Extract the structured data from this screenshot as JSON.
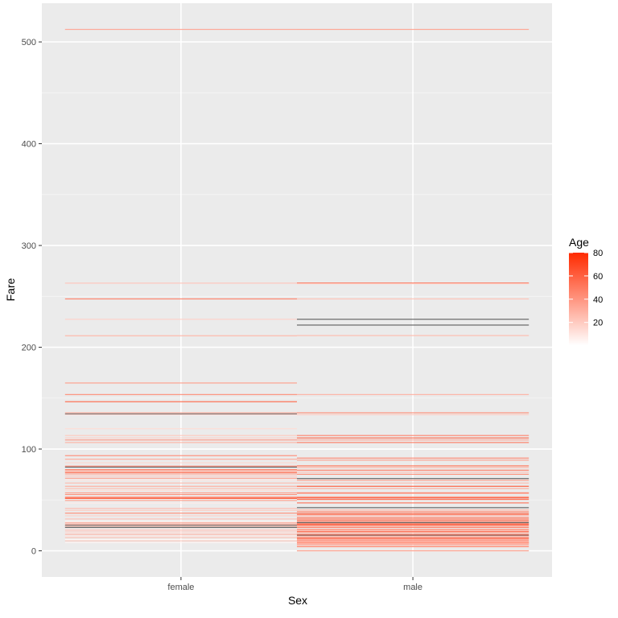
{
  "chart_data": {
    "type": "tile",
    "title": "",
    "xlabel": "Sex",
    "ylabel": "Fare",
    "categories": [
      "female",
      "male"
    ],
    "yticks": [
      0,
      100,
      200,
      300,
      400,
      500
    ],
    "ylim": [
      -25,
      537
    ],
    "grid": true,
    "legend": {
      "title": "Age",
      "position": "right",
      "ticks": [
        20,
        40,
        60,
        80
      ],
      "range": [
        0.42,
        80
      ],
      "low_color": "#ffffff",
      "high_color": "#ff2a00",
      "na_color": "#595959"
    },
    "series": [
      {
        "name": "female",
        "tiles": [
          {
            "fare": 512.3,
            "age": 35
          },
          {
            "fare": 263.0,
            "age": 23
          },
          {
            "fare": 247.5,
            "age": 50
          },
          {
            "fare": 227.5,
            "age": 18
          },
          {
            "fare": 211.3,
            "age": 29
          },
          {
            "fare": 164.9,
            "age": 38
          },
          {
            "fare": 153.5,
            "age": 45
          },
          {
            "fare": 146.5,
            "age": 60
          },
          {
            "fare": 135.6,
            "age": 33
          },
          {
            "fare": 134.5,
            "age": null
          },
          {
            "fare": 133.7,
            "age": 15
          },
          {
            "fare": 120.0,
            "age": 14
          },
          {
            "fare": 113.3,
            "age": 21
          },
          {
            "fare": 110.9,
            "age": 19
          },
          {
            "fare": 108.9,
            "age": 40
          },
          {
            "fare": 106.4,
            "age": 30
          },
          {
            "fare": 93.5,
            "age": 44
          },
          {
            "fare": 90.0,
            "age": 33
          },
          {
            "fare": 86.5,
            "age": 16
          },
          {
            "fare": 83.2,
            "age": 48
          },
          {
            "fare": 82.2,
            "age": null
          },
          {
            "fare": 79.7,
            "age": 56
          },
          {
            "fare": 78.3,
            "age": 42
          },
          {
            "fare": 77.9,
            "age": 24
          },
          {
            "fare": 76.7,
            "age": 58
          },
          {
            "fare": 75.3,
            "age": 30
          },
          {
            "fare": 73.5,
            "age": 22
          },
          {
            "fare": 71.3,
            "age": 38
          },
          {
            "fare": 69.5,
            "age": 10
          },
          {
            "fare": 66.6,
            "age": 27
          },
          {
            "fare": 63.4,
            "age": 32
          },
          {
            "fare": 61.2,
            "age": 26
          },
          {
            "fare": 59.4,
            "age": 14
          },
          {
            "fare": 57.0,
            "age": 36
          },
          {
            "fare": 55.4,
            "age": 45
          },
          {
            "fare": 53.1,
            "age": 35
          },
          {
            "fare": 52.0,
            "age": 58
          },
          {
            "fare": 51.5,
            "age": 63
          },
          {
            "fare": 49.5,
            "age": 39
          },
          {
            "fare": 46.9,
            "age": 8
          },
          {
            "fare": 41.6,
            "age": 28
          },
          {
            "fare": 39.7,
            "age": 20
          },
          {
            "fare": 37.0,
            "age": 45
          },
          {
            "fare": 34.4,
            "age": 18
          },
          {
            "fare": 31.3,
            "age": 24
          },
          {
            "fare": 29.1,
            "age": 4
          },
          {
            "fare": 27.7,
            "age": 30
          },
          {
            "fare": 26.3,
            "age": 38
          },
          {
            "fare": 25.0,
            "age": null
          },
          {
            "fare": 24.2,
            "age": 27
          },
          {
            "fare": 23.0,
            "age": null
          },
          {
            "fare": 21.0,
            "age": 19
          },
          {
            "fare": 19.5,
            "age": 22
          },
          {
            "fare": 17.8,
            "age": 15
          },
          {
            "fare": 16.1,
            "age": 29
          },
          {
            "fare": 14.5,
            "age": 9
          },
          {
            "fare": 13.0,
            "age": 24
          },
          {
            "fare": 11.1,
            "age": 3
          },
          {
            "fare": 9.8,
            "age": 21
          },
          {
            "fare": 8.0,
            "age": 5
          }
        ]
      },
      {
        "name": "male",
        "tiles": [
          {
            "fare": 512.3,
            "age": 36
          },
          {
            "fare": 263.0,
            "age": 64
          },
          {
            "fare": 262.4,
            "age": 19
          },
          {
            "fare": 247.5,
            "age": 24
          },
          {
            "fare": 227.5,
            "age": null
          },
          {
            "fare": 221.8,
            "age": null
          },
          {
            "fare": 211.5,
            "age": 27
          },
          {
            "fare": 153.5,
            "age": 31
          },
          {
            "fare": 135.6,
            "age": 45
          },
          {
            "fare": 133.7,
            "age": 20
          },
          {
            "fare": 113.3,
            "age": 48
          },
          {
            "fare": 110.9,
            "age": 61
          },
          {
            "fare": 108.9,
            "age": 36
          },
          {
            "fare": 106.4,
            "age": 52
          },
          {
            "fare": 91.1,
            "age": 47
          },
          {
            "fare": 89.1,
            "age": 38
          },
          {
            "fare": 83.5,
            "age": 54
          },
          {
            "fare": 81.9,
            "age": 30
          },
          {
            "fare": 79.2,
            "age": 50
          },
          {
            "fare": 77.3,
            "age": 25
          },
          {
            "fare": 75.2,
            "age": 45
          },
          {
            "fare": 71.0,
            "age": null
          },
          {
            "fare": 69.3,
            "age": 39
          },
          {
            "fare": 66.6,
            "age": 27
          },
          {
            "fare": 63.4,
            "age": 64
          },
          {
            "fare": 61.2,
            "age": 33
          },
          {
            "fare": 57.0,
            "age": 49
          },
          {
            "fare": 56.5,
            "age": 42
          },
          {
            "fare": 53.1,
            "age": 37
          },
          {
            "fare": 52.0,
            "age": 71
          },
          {
            "fare": 50.5,
            "age": 60
          },
          {
            "fare": 47.1,
            "age": 55
          },
          {
            "fare": 42.4,
            "age": null
          },
          {
            "fare": 40.1,
            "age": 29
          },
          {
            "fare": 38.5,
            "age": 45
          },
          {
            "fare": 36.8,
            "age": 65
          },
          {
            "fare": 35.5,
            "age": 52
          },
          {
            "fare": 34.0,
            "age": 28
          },
          {
            "fare": 32.3,
            "age": 56
          },
          {
            "fare": 31.0,
            "age": 41
          },
          {
            "fare": 29.7,
            "age": 62
          },
          {
            "fare": 28.5,
            "age": 33
          },
          {
            "fare": 27.7,
            "age": null
          },
          {
            "fare": 26.6,
            "age": 58
          },
          {
            "fare": 26.0,
            "age": 44
          },
          {
            "fare": 25.5,
            "age": 70
          },
          {
            "fare": 24.2,
            "age": 36
          },
          {
            "fare": 23.0,
            "age": 51
          },
          {
            "fare": 21.1,
            "age": 46
          },
          {
            "fare": 20.2,
            "age": 30
          },
          {
            "fare": 19.0,
            "age": 55
          },
          {
            "fare": 18.0,
            "age": 39
          },
          {
            "fare": 16.1,
            "age": 63
          },
          {
            "fare": 15.2,
            "age": null
          },
          {
            "fare": 14.5,
            "age": 40
          },
          {
            "fare": 13.0,
            "age": 25
          },
          {
            "fare": 12.5,
            "age": 74
          },
          {
            "fare": 11.5,
            "age": 32
          },
          {
            "fare": 10.5,
            "age": 48
          },
          {
            "fare": 9.5,
            "age": 28
          },
          {
            "fare": 8.7,
            "age": 40
          },
          {
            "fare": 8.05,
            "age": 35
          },
          {
            "fare": 7.9,
            "age": 22
          },
          {
            "fare": 7.75,
            "age": 46
          },
          {
            "fare": 7.25,
            "age": 26
          },
          {
            "fare": 6.5,
            "age": 38
          },
          {
            "fare": 5.0,
            "age": 33
          },
          {
            "fare": 4.0,
            "age": 42
          },
          {
            "fare": 0.0,
            "age": 39
          }
        ]
      }
    ]
  }
}
